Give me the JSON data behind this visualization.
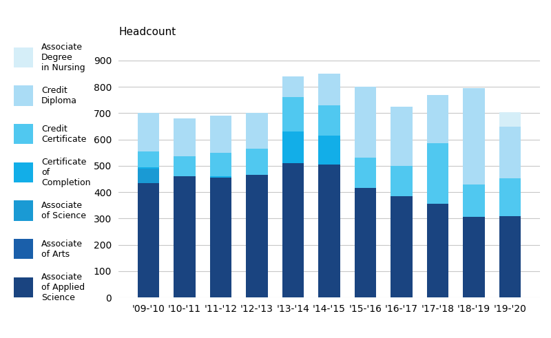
{
  "years": [
    "'09-'10",
    "'10-'11",
    "'11-'12",
    "'12-'13",
    "'13-'14",
    "'14-'15",
    "'15-'16",
    "'16-'17",
    "'17-'18",
    "'18-'19",
    "'19-'20"
  ],
  "categories": [
    "Associate of Applied Science",
    "Associate of Arts",
    "Associate of Science",
    "Certificate of Completion",
    "Credit Certificate",
    "Credit Diploma",
    "Associate Degree in Nursing"
  ],
  "colors": [
    "#1a4480",
    "#1a5faa",
    "#1a9ad4",
    "#12aee8",
    "#50c8f0",
    "#aadcf5",
    "#d5eef8"
  ],
  "data": {
    "Associate of Applied Science": [
      435,
      460,
      455,
      465,
      510,
      505,
      415,
      385,
      355,
      305,
      308
    ],
    "Associate of Arts": [
      0,
      0,
      0,
      0,
      0,
      0,
      0,
      0,
      0,
      0,
      0
    ],
    "Associate of Science": [
      55,
      0,
      0,
      0,
      0,
      0,
      0,
      0,
      0,
      0,
      0
    ],
    "Certificate of Completion": [
      5,
      0,
      5,
      0,
      120,
      110,
      0,
      0,
      0,
      0,
      0
    ],
    "Credit Certificate": [
      60,
      75,
      90,
      100,
      130,
      115,
      115,
      115,
      230,
      125,
      145
    ],
    "Credit Diploma": [
      145,
      145,
      140,
      135,
      80,
      120,
      270,
      225,
      185,
      365,
      195
    ],
    "Associate Degree in Nursing": [
      0,
      0,
      0,
      0,
      0,
      0,
      0,
      0,
      0,
      0,
      55
    ]
  },
  "ylabel": "Headcount",
  "ylim": [
    0,
    950
  ],
  "yticks": [
    0,
    100,
    200,
    300,
    400,
    500,
    600,
    700,
    800,
    900
  ],
  "background_color": "#ffffff",
  "grid_color": "#c8c8c8",
  "ylabel_fontsize": 11,
  "tick_fontsize": 10,
  "legend_fontsize": 9,
  "legend_labels_multiline": [
    "Associate\nDegree\nin Nursing",
    "Credit\nDiploma",
    "Credit\nCertificate",
    "Certificate\nof\nCompletion",
    "Associate\nof Science",
    "Associate\nof Arts",
    "Associate\nof Applied\nScience"
  ]
}
